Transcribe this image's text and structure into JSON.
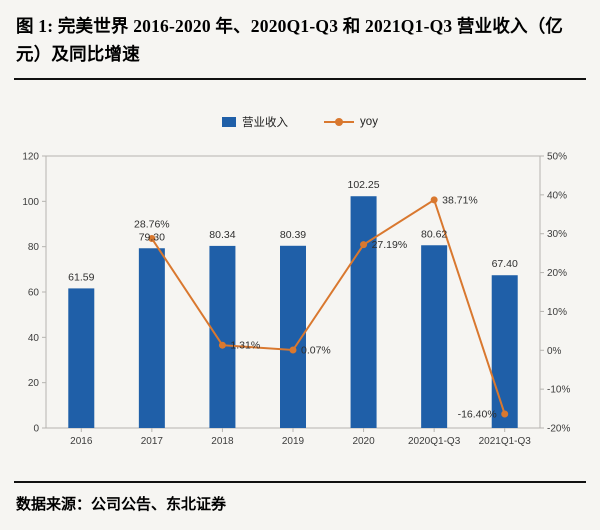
{
  "figure": {
    "title": "图 1: 完美世界 2016-2020 年、2020Q1-Q3 和 2021Q1-Q3 营业收入（亿元）及同比增速",
    "source": "数据来源：公司公告、东北证券"
  },
  "chart_data": {
    "type": "bar",
    "combo": "bar+line",
    "categories": [
      "2016",
      "2017",
      "2018",
      "2019",
      "2020",
      "2020Q1-Q3",
      "2021Q1-Q3"
    ],
    "series": [
      {
        "name": "营业收入",
        "type": "bar",
        "axis": "left",
        "color": "#1f5fa8",
        "values": [
          61.59,
          79.3,
          80.34,
          80.39,
          102.25,
          80.62,
          67.4
        ],
        "labels": [
          "61.59",
          "79.30",
          "80.34",
          "80.39",
          "102.25",
          "80.62",
          "67.40"
        ]
      },
      {
        "name": "yoy",
        "type": "line",
        "axis": "right",
        "color": "#d9782f",
        "values": [
          null,
          28.76,
          1.31,
          0.07,
          27.19,
          38.71,
          -16.4
        ],
        "labels": [
          null,
          "28.76%",
          "1.31%",
          "0.07%",
          "27.19%",
          "38.71%",
          "-16.40%"
        ],
        "label_placement": [
          null,
          "above",
          "right",
          "right",
          "right",
          "right",
          "left"
        ]
      }
    ],
    "left_axis": {
      "min": 0,
      "max": 120,
      "step": 20,
      "tick_labels": [
        "0",
        "20",
        "40",
        "60",
        "80",
        "100",
        "120"
      ]
    },
    "right_axis": {
      "min": -20,
      "max": 50,
      "step": 10,
      "tick_labels": [
        "-20%",
        "-10%",
        "0%",
        "10%",
        "20%",
        "30%",
        "40%",
        "50%"
      ]
    },
    "legend": {
      "position": "top",
      "items": [
        "营业收入",
        "yoy"
      ]
    },
    "grid": false
  }
}
